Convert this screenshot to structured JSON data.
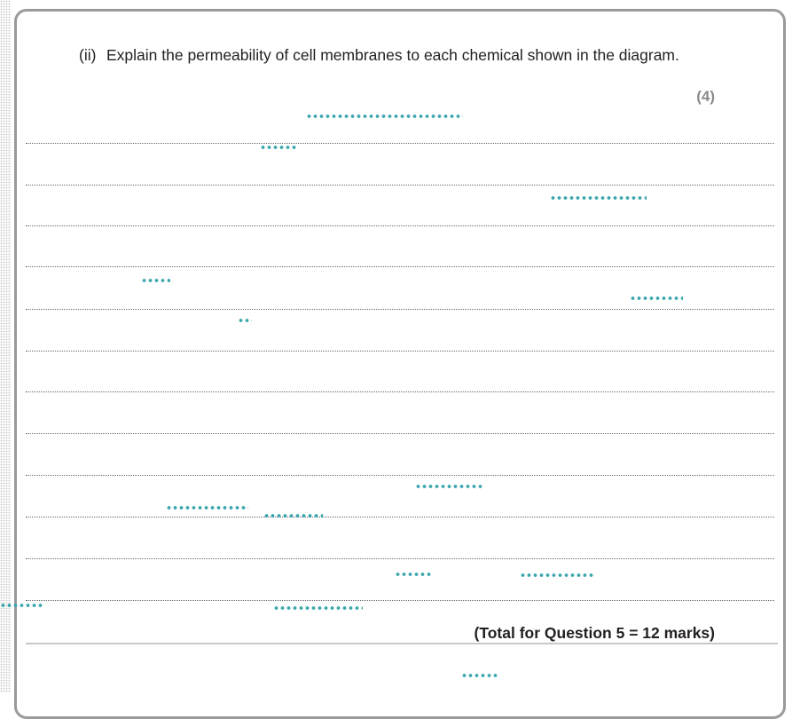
{
  "question": {
    "number": "(ii)",
    "text": "Explain the permeability of cell membranes to each chemical shown in the diagram.",
    "marks": "(4)"
  },
  "total": "(Total for Question 5 = 12 marks)"
}
